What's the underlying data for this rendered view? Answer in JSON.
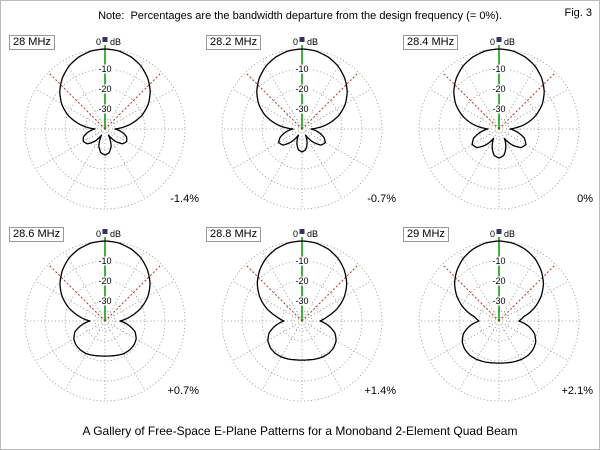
{
  "figure": {
    "note": "Note:  Percentages are the bandwidth departure from the design frequency (= 0%).",
    "fig_label": "Fig. 3",
    "caption": "A Gallery of Free-Space E-Plane Patterns for a Monoband 2-Element Quad Beam"
  },
  "scale": {
    "zero_left": "0",
    "zero_right": "dB",
    "ring_labels": [
      "-10",
      "-20",
      "-30"
    ]
  },
  "colors": {
    "grid": "#888888",
    "pattern": "#000000",
    "green": "#009900",
    "red": "#c03030",
    "marker": "#333366",
    "background": "#ffffff"
  },
  "chart_data": {
    "type": "polar",
    "unit": "dB",
    "min_db": -40,
    "rings_db": [
      0,
      -10,
      -20,
      -30,
      -35
    ],
    "ring_label_db": [
      -10,
      -20,
      -30
    ],
    "angles_deg": [
      0,
      10,
      20,
      30,
      40,
      50,
      60,
      70,
      80,
      90,
      100,
      110,
      120,
      130,
      140,
      150,
      160,
      170,
      180
    ],
    "symmetry": "mirrored about 0-180 axis",
    "panels": [
      {
        "freq": "28 MHz",
        "percent": "-1.4%",
        "gain_db": [
          0,
          -0.4,
          -1.7,
          -3.8,
          -6.8,
          -10.5,
          -15,
          -20.5,
          -27.5,
          -35,
          -31.5,
          -28.5,
          -27.5,
          -28.5,
          -32,
          -36.5,
          -31,
          -28,
          -27
        ]
      },
      {
        "freq": "28.2 MHz",
        "percent": "-0.7%",
        "gain_db": [
          0,
          -0.4,
          -1.7,
          -3.8,
          -6.8,
          -10.5,
          -15,
          -20.5,
          -27.5,
          -35.5,
          -32,
          -28.5,
          -26.5,
          -27.5,
          -31.5,
          -36.5,
          -32.5,
          -29.5,
          -28.5
        ]
      },
      {
        "freq": "28.4 MHz",
        "percent": "0%",
        "gain_db": [
          0,
          -0.4,
          -1.7,
          -3.8,
          -6.8,
          -10.5,
          -15,
          -20.5,
          -27,
          -34.5,
          -30.5,
          -26.5,
          -24.5,
          -25.5,
          -29.5,
          -34.5,
          -30,
          -26.5,
          -25.5
        ]
      },
      {
        "freq": "28.6 MHz",
        "percent": "+0.7%",
        "gain_db": [
          0,
          -0.4,
          -1.7,
          -3.8,
          -6.9,
          -10.6,
          -15.2,
          -20.8,
          -27,
          -32.5,
          -28,
          -24,
          -22,
          -21.2,
          -21,
          -21.2,
          -21.8,
          -22.3,
          -22.5
        ]
      },
      {
        "freq": "28.8 MHz",
        "percent": "+1.4%",
        "gain_db": [
          0,
          -0.4,
          -1.7,
          -3.9,
          -7,
          -10.8,
          -15.5,
          -21,
          -27,
          -31,
          -26.5,
          -22.5,
          -20.3,
          -19.3,
          -19,
          -19.3,
          -19.8,
          -20.3,
          -20.5
        ]
      },
      {
        "freq": "29 MHz",
        "percent": "+2.1%",
        "gain_db": [
          0,
          -0.45,
          -1.8,
          -4,
          -7.2,
          -11,
          -15.8,
          -21.3,
          -27.5,
          -30,
          -25,
          -21,
          -18.8,
          -17.8,
          -17.5,
          -17.8,
          -18.3,
          -18.8,
          -19
        ]
      }
    ]
  }
}
